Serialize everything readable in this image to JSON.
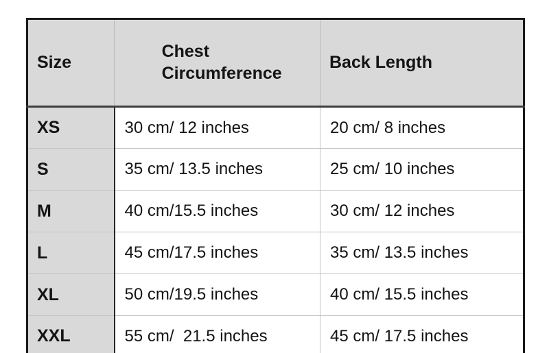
{
  "chart_data": {
    "type": "table",
    "columns": [
      "Size",
      "Chest Circumference",
      "Back Length"
    ],
    "rows": [
      [
        "XS",
        "30 cm/ 12 inches",
        "20 cm/ 8 inches"
      ],
      [
        "S",
        "35 cm/ 13.5 inches",
        "25 cm/ 10 inches"
      ],
      [
        "M",
        "40 cm/15.5 inches",
        "30 cm/ 12 inches"
      ],
      [
        "L",
        "45 cm/17.5 inches",
        "35 cm/ 13.5 inches"
      ],
      [
        "XL",
        "50 cm/19.5 inches",
        "40 cm/ 15.5 inches"
      ],
      [
        "XXL",
        "55 cm/  21.5 inches",
        "45 cm/ 17.5 inches"
      ]
    ],
    "layout": {
      "grid": true,
      "header_position": "top"
    }
  },
  "colors": {
    "header_bg": "#d9d9d9",
    "size_column_bg": "#d9d9d9",
    "cell_bg": "#ffffff",
    "outer_border": "#1a1a1a",
    "inner_gridline": "#c4c4c4",
    "text": "#141414"
  }
}
